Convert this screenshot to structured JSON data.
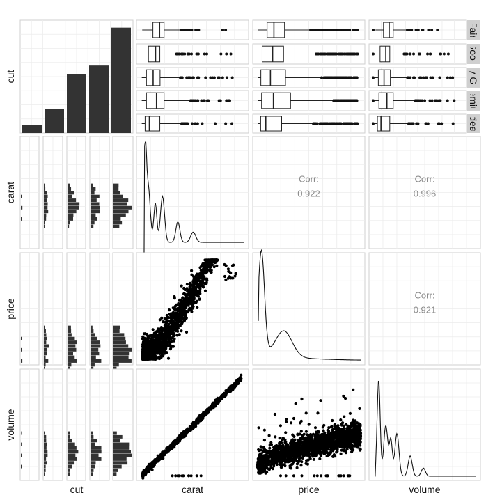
{
  "chart_data": {
    "type": "scatter",
    "variables": [
      "cut",
      "carat",
      "price",
      "volume"
    ],
    "cut_levels": [
      "Fair",
      "Good",
      "Very Good",
      "Premium",
      "Ideal"
    ],
    "strip_labels": [
      "Fair",
      "Good",
      "Very Good",
      "Premium",
      "Ideal"
    ],
    "cut_counts": {
      "Fair": 1610,
      "Good": 4906,
      "Very Good": 12082,
      "Premium": 13791,
      "Ideal": 21551
    },
    "correlations": [
      {
        "row": "carat",
        "col": "price",
        "label": "Corr:",
        "value": "0.922"
      },
      {
        "row": "carat",
        "col": "volume",
        "label": "Corr:",
        "value": "0.996"
      },
      {
        "row": "price",
        "col": "volume",
        "label": "Corr:",
        "value": "0.921"
      }
    ],
    "boxplots": {
      "carat": [
        {
          "cut": "Fair",
          "min": 0.22,
          "q1": 0.7,
          "median": 1.0,
          "q3": 1.2,
          "whisker_high": 1.95
        },
        {
          "cut": "Good",
          "min": 0.23,
          "q1": 0.5,
          "median": 0.82,
          "q3": 1.01,
          "whisker_high": 1.76
        },
        {
          "cut": "Very Good",
          "min": 0.2,
          "q1": 0.41,
          "median": 0.71,
          "q3": 1.02,
          "whisker_high": 1.93
        },
        {
          "cut": "Premium",
          "min": 0.2,
          "q1": 0.41,
          "median": 0.86,
          "q3": 1.2,
          "whisker_high": 2.39
        },
        {
          "cut": "Ideal",
          "min": 0.2,
          "q1": 0.35,
          "median": 0.54,
          "q3": 1.01,
          "whisker_high": 1.99
        }
      ],
      "price": [
        {
          "cut": "Fair",
          "min": 337,
          "q1": 2050,
          "median": 3282,
          "q3": 5206,
          "whisker_high": 9900
        },
        {
          "cut": "Good",
          "min": 327,
          "q1": 1145,
          "median": 3050,
          "q3": 5028,
          "whisker_high": 10800
        },
        {
          "cut": "Very Good",
          "min": 336,
          "q1": 912,
          "median": 2648,
          "q3": 5373,
          "whisker_high": 11900
        },
        {
          "cut": "Premium",
          "min": 326,
          "q1": 1046,
          "median": 3185,
          "q3": 6296,
          "whisker_high": 14100
        },
        {
          "cut": "Ideal",
          "min": 326,
          "q1": 878,
          "median": 1810,
          "q3": 4678,
          "whisker_high": 10300
        }
      ],
      "volume": [
        {
          "cut": "Fair",
          "min": 40,
          "q1": 110,
          "median": 160,
          "q3": 195,
          "whisker_high": 320
        },
        {
          "cut": "Good",
          "min": 40,
          "q1": 80,
          "median": 130,
          "q3": 165,
          "whisker_high": 290
        },
        {
          "cut": "Very Good",
          "min": 35,
          "q1": 65,
          "median": 115,
          "q3": 170,
          "whisker_high": 320
        },
        {
          "cut": "Premium",
          "min": 35,
          "q1": 70,
          "median": 140,
          "q3": 195,
          "whisker_high": 390
        },
        {
          "cut": "Ideal",
          "min": 35,
          "q1": 57,
          "median": 88,
          "q3": 165,
          "whisker_high": 330
        }
      ]
    },
    "grid": true,
    "x_axis_labels": [
      "cut",
      "carat",
      "price",
      "volume"
    ],
    "y_axis_labels": [
      "cut",
      "carat",
      "price",
      "volume"
    ]
  }
}
